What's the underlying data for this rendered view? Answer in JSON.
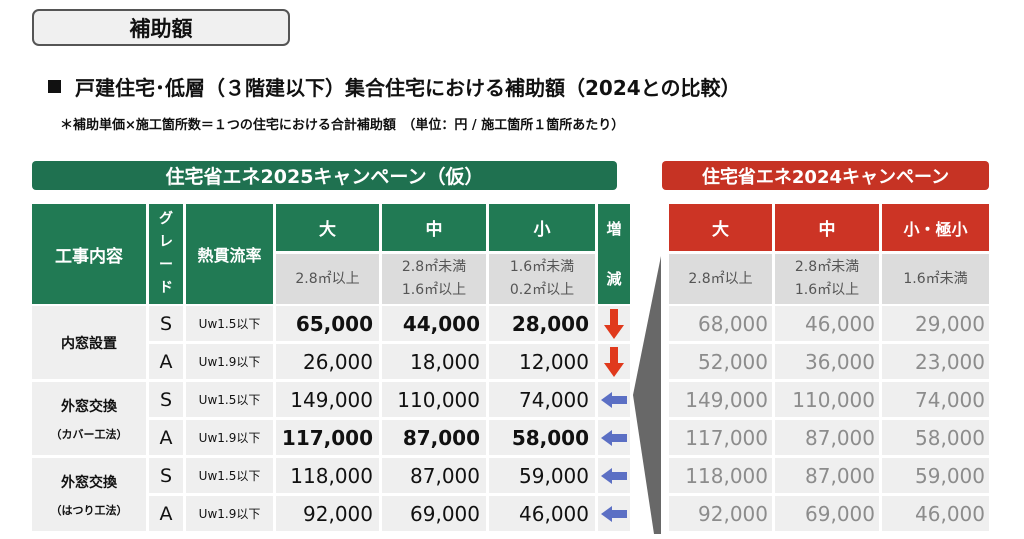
{
  "section_tag": "補助額",
  "heading": "戸建住宅･低層（３階建以下）集合住宅における補助額（2024との比較）",
  "note": "＊補助単価×施工箇所数＝１つの住宅における合計補助額　（単位：円 / 施工箇所１箇所あたり）",
  "left_table": {
    "banner": "住宅省エネ2025キャンペーン（仮）",
    "headers": {
      "work": "工事内容",
      "grade_chars": [
        "グ",
        "レ",
        "ー",
        "ド"
      ],
      "uw": "熱貫流率",
      "size_large": "大",
      "size_medium": "中",
      "size_small": "小",
      "change_chars": [
        "増",
        "減"
      ]
    },
    "ranges": {
      "large": [
        "2.8㎡以上"
      ],
      "medium": [
        "2.8㎡未満",
        "1.6㎡以上"
      ],
      "small": [
        "1.6㎡未満",
        "0.2㎡以上"
      ]
    },
    "groups": [
      {
        "name": "内窓設置",
        "sub": ""
      },
      {
        "name": "外窓交換",
        "sub": "（カバー工法）"
      },
      {
        "name": "外窓交換",
        "sub": "（はつり工法）"
      }
    ],
    "rows": [
      {
        "grade": "S",
        "uw": "Uw1.5以下",
        "large": "65,000",
        "medium": "44,000",
        "small": "28,000",
        "change": "down"
      },
      {
        "grade": "A",
        "uw": "Uw1.9以下",
        "large": "26,000",
        "medium": "18,000",
        "small": "12,000",
        "change": "down"
      },
      {
        "grade": "S",
        "uw": "Uw1.5以下",
        "large": "149,000",
        "medium": "110,000",
        "small": "74,000",
        "change": "same"
      },
      {
        "grade": "A",
        "uw": "Uw1.9以下",
        "large": "117,000",
        "medium": "87,000",
        "small": "58,000",
        "change": "same"
      },
      {
        "grade": "S",
        "uw": "Uw1.5以下",
        "large": "118,000",
        "medium": "87,000",
        "small": "59,000",
        "change": "same"
      },
      {
        "grade": "A",
        "uw": "Uw1.9以下",
        "large": "92,000",
        "medium": "69,000",
        "small": "46,000",
        "change": "same"
      }
    ]
  },
  "right_table": {
    "banner": "住宅省エネ2024キャンペーン",
    "headers": {
      "size_large": "大",
      "size_medium": "中",
      "size_small": "小・極小"
    },
    "ranges": {
      "large": [
        "2.8㎡以上"
      ],
      "medium": [
        "2.8㎡未満",
        "1.6㎡以上"
      ],
      "small": [
        "1.6㎡未満"
      ]
    },
    "rows": [
      {
        "large": "68,000",
        "medium": "46,000",
        "small": "29,000"
      },
      {
        "large": "52,000",
        "medium": "36,000",
        "small": "23,000"
      },
      {
        "large": "149,000",
        "medium": "110,000",
        "small": "74,000"
      },
      {
        "large": "117,000",
        "medium": "87,000",
        "small": "58,000"
      },
      {
        "large": "118,000",
        "medium": "87,000",
        "small": "59,000"
      },
      {
        "large": "92,000",
        "medium": "69,000",
        "small": "46,000"
      }
    ]
  },
  "colors": {
    "green_header": "#217a54",
    "red_header": "#cc3425",
    "down_arrow": "#e0391c",
    "same_arrow": "#5b6fc4"
  },
  "icons": {
    "down": "down-arrow-icon",
    "same": "left-arrow-icon"
  }
}
